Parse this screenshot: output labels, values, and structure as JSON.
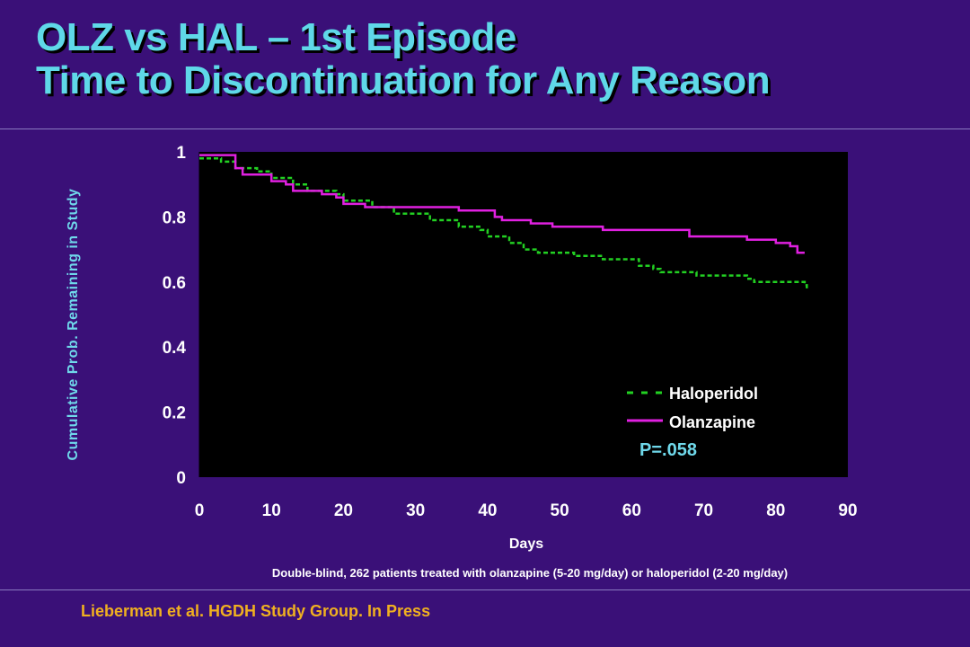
{
  "header": {
    "title_line1": "OLZ vs HAL – 1st Episode",
    "title_line2": "Time to Discontinuation for Any Reason"
  },
  "chart_data": {
    "type": "line",
    "step": true,
    "xlabel": "Days",
    "ylabel": "Cumulative Prob. Remaining in Study",
    "xlim": [
      0,
      90
    ],
    "ylim": [
      0,
      1
    ],
    "x_ticks": [
      "0",
      "10",
      "20",
      "30",
      "40",
      "50",
      "60",
      "70",
      "80",
      "90"
    ],
    "y_ticks": [
      "0",
      "0.2",
      "0.4",
      "0.6",
      "0.8",
      "1"
    ],
    "grid": false,
    "legend_position": "bottom-right",
    "colors": {
      "background": "#3a1078",
      "plot_bg": "#000000",
      "haloperidol": "#22d022",
      "olanzapine": "#e020e0"
    },
    "series": [
      {
        "name": "Haloperidol",
        "style": "dashed",
        "points": [
          [
            0,
            0.98
          ],
          [
            3,
            0.97
          ],
          [
            5,
            0.95
          ],
          [
            8,
            0.94
          ],
          [
            10,
            0.92
          ],
          [
            13,
            0.9
          ],
          [
            15,
            0.88
          ],
          [
            19,
            0.87
          ],
          [
            20,
            0.85
          ],
          [
            24,
            0.83
          ],
          [
            27,
            0.81
          ],
          [
            32,
            0.79
          ],
          [
            36,
            0.77
          ],
          [
            39,
            0.76
          ],
          [
            40,
            0.74
          ],
          [
            43,
            0.72
          ],
          [
            45,
            0.7
          ],
          [
            47,
            0.69
          ],
          [
            52,
            0.68
          ],
          [
            56,
            0.67
          ],
          [
            61,
            0.65
          ],
          [
            63,
            0.64
          ],
          [
            64,
            0.63
          ],
          [
            69,
            0.62
          ],
          [
            76,
            0.61
          ],
          [
            77,
            0.6
          ],
          [
            84,
            0.59
          ],
          [
            84.3,
            0.58
          ]
        ]
      },
      {
        "name": "Olanzapine",
        "style": "solid",
        "points": [
          [
            0,
            0.99
          ],
          [
            5,
            0.95
          ],
          [
            6,
            0.93
          ],
          [
            10,
            0.91
          ],
          [
            12,
            0.9
          ],
          [
            13,
            0.88
          ],
          [
            17,
            0.87
          ],
          [
            19,
            0.86
          ],
          [
            20,
            0.84
          ],
          [
            23,
            0.83
          ],
          [
            36,
            0.82
          ],
          [
            41,
            0.8
          ],
          [
            42,
            0.79
          ],
          [
            46,
            0.78
          ],
          [
            49,
            0.77
          ],
          [
            52,
            0.77
          ],
          [
            56,
            0.76
          ],
          [
            66,
            0.76
          ],
          [
            68,
            0.74
          ],
          [
            76,
            0.73
          ],
          [
            80,
            0.72
          ],
          [
            82,
            0.71
          ],
          [
            83,
            0.69
          ],
          [
            84,
            0.69
          ]
        ]
      }
    ],
    "annotations": {
      "p_value": "P=.058",
      "footnote": "Double-blind, 262 patients treated with olanzapine (5-20 mg/day) or haloperidol (2-20 mg/day)"
    }
  },
  "footer": {
    "citation": "Lieberman et al. HGDH Study Group. In Press"
  }
}
